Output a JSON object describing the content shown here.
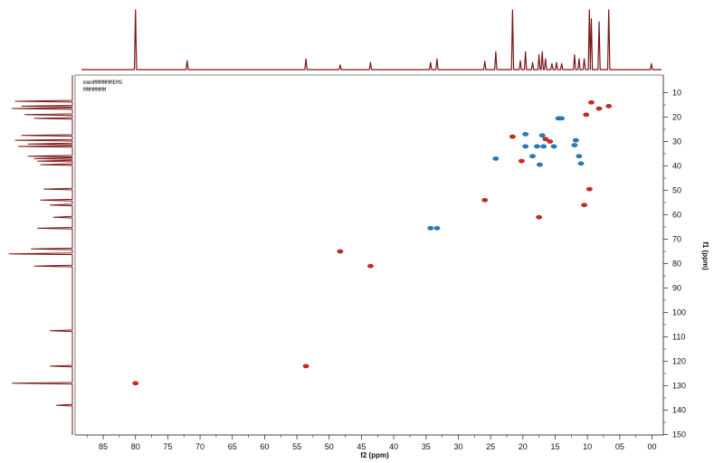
{
  "chart_data": {
    "type": "scatter",
    "subtype": "2D NMR HSQC contour plot with 1D projections",
    "title": "",
    "info_lines": [
      "mmmMMMMMMEMS",
      "MMMMMMM"
    ],
    "xlabel": "f2 (ppm)",
    "ylabel": "f1 (ppm)",
    "xlim": [
      89,
      0
    ],
    "ylim": [
      0.5,
      16.0
    ],
    "x_ticks": [
      85,
      80,
      75,
      70,
      65,
      60,
      55,
      50,
      45,
      40,
      35,
      30,
      25,
      20,
      15,
      10,
      5,
      0
    ],
    "x_tick_labels": [
      "85",
      "80",
      "75",
      "70",
      "65",
      "60",
      "55",
      "50",
      "45",
      "40",
      "35",
      "30",
      "25",
      "20",
      "15",
      "10",
      "05",
      "00"
    ],
    "y_ticks": [
      1,
      2,
      3,
      4,
      5,
      6,
      7,
      8,
      9,
      10,
      11,
      12,
      13,
      14,
      15
    ],
    "y_tick_labels": [
      "10",
      "20",
      "30",
      "40",
      "50",
      "60",
      "70",
      "80",
      "90",
      "100",
      "110",
      "120",
      "130",
      "140",
      "150"
    ],
    "grid": false,
    "colors": {
      "positive": "#cc2a1e",
      "negative": "#1f7fbf",
      "negative_dark": "#1c4f82",
      "projection": "#7a1616",
      "axis": "#333333"
    },
    "series": [
      {
        "sign": "positive",
        "points": [
          {
            "x": 80.0,
            "y": 12.9
          },
          {
            "x": 53.6,
            "y": 12.2
          },
          {
            "x": 48.3,
            "y": 7.5
          },
          {
            "x": 43.6,
            "y": 8.1
          },
          {
            "x": 25.9,
            "y": 5.4
          },
          {
            "x": 21.6,
            "y": 2.8
          },
          {
            "x": 20.2,
            "y": 3.8
          },
          {
            "x": 17.5,
            "y": 6.1
          },
          {
            "x": 16.5,
            "y": 2.9
          },
          {
            "x": 15.8,
            "y": 3.0
          },
          {
            "x": 10.5,
            "y": 5.6
          },
          {
            "x": 9.7,
            "y": 4.95
          },
          {
            "x": 9.4,
            "y": 1.4
          },
          {
            "x": 10.2,
            "y": 1.9
          },
          {
            "x": 8.2,
            "y": 1.65
          },
          {
            "x": 6.7,
            "y": 1.55
          }
        ]
      },
      {
        "sign": "negative",
        "points": [
          {
            "x": 34.3,
            "y": 6.55
          },
          {
            "x": 33.3,
            "y": 6.55
          },
          {
            "x": 24.2,
            "y": 3.7
          },
          {
            "x": 19.6,
            "y": 2.7
          },
          {
            "x": 19.6,
            "y": 3.2
          },
          {
            "x": 18.5,
            "y": 3.6
          },
          {
            "x": 17.8,
            "y": 3.2
          },
          {
            "x": 17.0,
            "y": 2.75
          },
          {
            "x": 16.8,
            "y": 3.2
          },
          {
            "x": 17.4,
            "y": 3.95
          },
          {
            "x": 15.2,
            "y": 3.2
          },
          {
            "x": 14.5,
            "y": 2.05
          },
          {
            "x": 14.0,
            "y": 2.05
          },
          {
            "x": 12.0,
            "y": 3.15
          },
          {
            "x": 11.8,
            "y": 2.95
          },
          {
            "x": 11.3,
            "y": 3.6
          },
          {
            "x": 11.0,
            "y": 3.9
          }
        ]
      }
    ],
    "top_projection_peaks": [
      {
        "x": 80.0,
        "h": 1.0
      },
      {
        "x": 72.0,
        "h": 0.15
      },
      {
        "x": 53.6,
        "h": 0.18
      },
      {
        "x": 48.3,
        "h": 0.08
      },
      {
        "x": 43.6,
        "h": 0.12
      },
      {
        "x": 34.3,
        "h": 0.12
      },
      {
        "x": 33.3,
        "h": 0.18
      },
      {
        "x": 25.9,
        "h": 0.14
      },
      {
        "x": 24.2,
        "h": 0.3
      },
      {
        "x": 21.6,
        "h": 1.05
      },
      {
        "x": 20.4,
        "h": 0.15
      },
      {
        "x": 19.6,
        "h": 0.3
      },
      {
        "x": 18.5,
        "h": 0.12
      },
      {
        "x": 17.5,
        "h": 0.25
      },
      {
        "x": 17.0,
        "h": 0.3
      },
      {
        "x": 16.5,
        "h": 0.18
      },
      {
        "x": 15.5,
        "h": 0.1
      },
      {
        "x": 14.8,
        "h": 0.12
      },
      {
        "x": 14.0,
        "h": 0.1
      },
      {
        "x": 12.0,
        "h": 0.25
      },
      {
        "x": 11.3,
        "h": 0.18
      },
      {
        "x": 10.5,
        "h": 0.18
      },
      {
        "x": 9.7,
        "h": 1.05
      },
      {
        "x": 9.4,
        "h": 0.85
      },
      {
        "x": 8.2,
        "h": 0.8
      },
      {
        "x": 6.7,
        "h": 1.05
      },
      {
        "x": 0.1,
        "h": 0.1
      }
    ],
    "left_projection_peaks": [
      {
        "y": 1.35,
        "h": 0.9
      },
      {
        "y": 1.55,
        "h": 0.8
      },
      {
        "y": 1.65,
        "h": 0.95
      },
      {
        "y": 1.9,
        "h": 0.75
      },
      {
        "y": 2.05,
        "h": 0.6
      },
      {
        "y": 2.75,
        "h": 0.8
      },
      {
        "y": 2.95,
        "h": 0.9
      },
      {
        "y": 3.1,
        "h": 0.7
      },
      {
        "y": 3.2,
        "h": 0.85
      },
      {
        "y": 3.6,
        "h": 0.7
      },
      {
        "y": 3.7,
        "h": 0.6
      },
      {
        "y": 3.8,
        "h": 0.55
      },
      {
        "y": 3.95,
        "h": 0.5
      },
      {
        "y": 4.95,
        "h": 0.45
      },
      {
        "y": 5.4,
        "h": 0.5
      },
      {
        "y": 5.6,
        "h": 0.35
      },
      {
        "y": 6.1,
        "h": 0.3
      },
      {
        "y": 6.55,
        "h": 0.55
      },
      {
        "y": 7.4,
        "h": 0.65
      },
      {
        "y": 7.6,
        "h": 1.0
      },
      {
        "y": 8.1,
        "h": 0.6
      },
      {
        "y": 10.75,
        "h": 0.35
      },
      {
        "y": 12.2,
        "h": 0.35
      },
      {
        "y": 12.9,
        "h": 0.95
      },
      {
        "y": 13.8,
        "h": 0.25
      }
    ]
  }
}
